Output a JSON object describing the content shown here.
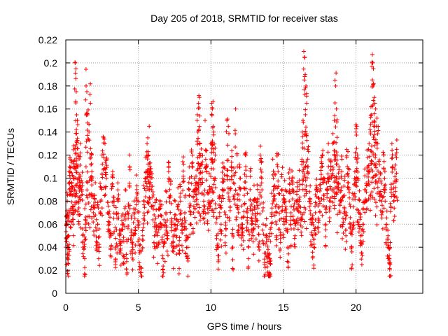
{
  "chart_data": {
    "type": "scatter",
    "title": "Day 205 of 2018, SRMTID for receiver stas",
    "xlabel": "GPS time / hours",
    "ylabel": "SRMTID / TECUs",
    "xlim": [
      0,
      24.6
    ],
    "ylim": [
      0,
      0.22
    ],
    "x_ticks": [
      0,
      5,
      10,
      15,
      20
    ],
    "x_tick_labels": [
      "0",
      "5",
      "10",
      "15",
      "20"
    ],
    "y_ticks": [
      0,
      0.02,
      0.04,
      0.06,
      0.08,
      0.1,
      0.12,
      0.14,
      0.16,
      0.18,
      0.2,
      0.22
    ],
    "y_tick_labels": [
      "0",
      "0.02",
      "0.04",
      "0.06",
      "0.08",
      "0.1",
      "0.12",
      "0.14",
      "0.16",
      "0.18",
      "0.2",
      "0.22"
    ],
    "grid": true,
    "legend": "none",
    "marker": "plus",
    "series_color": "#ff0000",
    "data_extent_hours": [
      0,
      22.8
    ],
    "series": [
      {
        "name": "SRMTID",
        "points": [
          [
            0.0,
            0.04
          ],
          [
            0.05,
            0.06
          ],
          [
            0.1,
            0.08
          ],
          [
            0.12,
            0.03
          ],
          [
            0.15,
            0.026
          ],
          [
            0.2,
            0.05
          ],
          [
            0.25,
            0.09
          ],
          [
            0.3,
            0.1
          ],
          [
            0.35,
            0.07
          ],
          [
            0.4,
            0.115
          ],
          [
            0.45,
            0.085
          ],
          [
            0.5,
            0.06
          ],
          [
            0.55,
            0.11
          ],
          [
            0.6,
            0.09
          ],
          [
            0.65,
            0.2
          ],
          [
            0.7,
            0.195
          ],
          [
            0.72,
            0.175
          ],
          [
            0.75,
            0.155
          ],
          [
            0.8,
            0.15
          ],
          [
            0.85,
            0.12
          ],
          [
            0.9,
            0.08
          ],
          [
            0.95,
            0.1
          ],
          [
            1.0,
            0.13
          ],
          [
            1.1,
            0.09
          ],
          [
            1.2,
            0.04
          ],
          [
            1.3,
            0.03
          ],
          [
            1.35,
            0.06
          ],
          [
            1.4,
            0.18
          ],
          [
            1.45,
            0.175
          ],
          [
            1.5,
            0.155
          ],
          [
            1.6,
            0.14
          ],
          [
            1.7,
            0.165
          ],
          [
            1.75,
            0.12
          ],
          [
            1.8,
            0.1
          ],
          [
            1.9,
            0.07
          ],
          [
            2.0,
            0.085
          ],
          [
            2.1,
            0.045
          ],
          [
            2.2,
            0.06
          ],
          [
            2.3,
            0.04
          ],
          [
            2.4,
            0.08
          ],
          [
            2.5,
            0.12
          ],
          [
            2.6,
            0.135
          ],
          [
            2.7,
            0.13
          ],
          [
            2.8,
            0.1
          ],
          [
            2.9,
            0.07
          ],
          [
            3.0,
            0.06
          ],
          [
            3.1,
            0.05
          ],
          [
            3.2,
            0.095
          ],
          [
            3.3,
            0.065
          ],
          [
            3.4,
            0.04
          ],
          [
            3.5,
            0.055
          ],
          [
            3.6,
            0.08
          ],
          [
            3.7,
            0.05
          ],
          [
            3.8,
            0.035
          ],
          [
            3.9,
            0.06
          ],
          [
            4.0,
            0.045
          ],
          [
            4.1,
            0.075
          ],
          [
            4.2,
            0.03
          ],
          [
            4.3,
            0.065
          ],
          [
            4.4,
            0.12
          ],
          [
            4.5,
            0.05
          ],
          [
            4.6,
            0.04
          ],
          [
            4.7,
            0.07
          ],
          [
            4.8,
            0.055
          ],
          [
            4.9,
            0.09
          ],
          [
            5.0,
            0.06
          ],
          [
            5.1,
            0.035
          ],
          [
            5.2,
            0.018
          ],
          [
            5.3,
            0.05
          ],
          [
            5.4,
            0.08
          ],
          [
            5.5,
            0.1
          ],
          [
            5.6,
            0.13
          ],
          [
            5.65,
            0.135
          ],
          [
            5.7,
            0.12
          ],
          [
            5.75,
            0.145
          ],
          [
            5.8,
            0.11
          ],
          [
            5.9,
            0.09
          ],
          [
            6.0,
            0.075
          ],
          [
            6.1,
            0.05
          ],
          [
            6.2,
            0.065
          ],
          [
            6.3,
            0.04
          ],
          [
            6.4,
            0.055
          ],
          [
            6.5,
            0.08
          ],
          [
            6.6,
            0.06
          ],
          [
            6.7,
            0.03
          ],
          [
            6.8,
            0.045
          ],
          [
            6.9,
            0.07
          ],
          [
            7.0,
            0.05
          ],
          [
            7.1,
            0.1
          ],
          [
            7.2,
            0.085
          ],
          [
            7.3,
            0.06
          ],
          [
            7.4,
            0.04
          ],
          [
            7.5,
            0.065
          ],
          [
            7.6,
            0.05
          ],
          [
            7.7,
            0.075
          ],
          [
            7.8,
            0.035
          ],
          [
            7.9,
            0.08
          ],
          [
            8.0,
            0.055
          ],
          [
            8.1,
            0.1
          ],
          [
            8.2,
            0.07
          ],
          [
            8.3,
            0.05
          ],
          [
            8.4,
            0.03
          ],
          [
            8.5,
            0.09
          ],
          [
            8.6,
            0.06
          ],
          [
            8.7,
            0.11
          ],
          [
            8.8,
            0.07
          ],
          [
            8.9,
            0.08
          ],
          [
            9.0,
            0.09
          ],
          [
            9.05,
            0.15
          ],
          [
            9.1,
            0.14
          ],
          [
            9.15,
            0.165
          ],
          [
            9.2,
            0.17
          ],
          [
            9.25,
            0.13
          ],
          [
            9.3,
            0.12
          ],
          [
            9.4,
            0.1
          ],
          [
            9.5,
            0.08
          ],
          [
            9.6,
            0.15
          ],
          [
            9.7,
            0.11
          ],
          [
            9.8,
            0.07
          ],
          [
            9.9,
            0.09
          ],
          [
            10.0,
            0.13
          ],
          [
            10.05,
            0.165
          ],
          [
            10.1,
            0.16
          ],
          [
            10.15,
            0.145
          ],
          [
            10.2,
            0.14
          ],
          [
            10.3,
            0.12
          ],
          [
            10.4,
            0.05
          ],
          [
            10.5,
            0.04
          ],
          [
            10.6,
            0.07
          ],
          [
            10.7,
            0.06
          ],
          [
            10.8,
            0.1
          ],
          [
            10.9,
            0.09
          ],
          [
            11.0,
            0.05
          ],
          [
            11.1,
            0.15
          ],
          [
            11.2,
            0.145
          ],
          [
            11.3,
            0.08
          ],
          [
            11.4,
            0.11
          ],
          [
            11.5,
            0.04
          ],
          [
            11.6,
            0.095
          ],
          [
            11.7,
            0.16
          ],
          [
            11.8,
            0.12
          ],
          [
            11.9,
            0.07
          ],
          [
            12.0,
            0.1
          ],
          [
            12.1,
            0.06
          ],
          [
            12.2,
            0.05
          ],
          [
            12.3,
            0.085
          ],
          [
            12.4,
            0.11
          ],
          [
            12.5,
            0.07
          ],
          [
            12.6,
            0.04
          ],
          [
            12.7,
            0.09
          ],
          [
            12.8,
            0.06
          ],
          [
            12.9,
            0.05
          ],
          [
            13.0,
            0.075
          ],
          [
            13.1,
            0.065
          ],
          [
            13.2,
            0.08
          ],
          [
            13.3,
            0.04
          ],
          [
            13.4,
            0.12
          ],
          [
            13.5,
            0.1
          ],
          [
            13.6,
            0.06
          ],
          [
            13.7,
            0.025
          ],
          [
            13.8,
            0.05
          ],
          [
            13.9,
            0.035
          ],
          [
            14.0,
            0.018
          ],
          [
            14.05,
            0.016
          ],
          [
            14.1,
            0.045
          ],
          [
            14.2,
            0.07
          ],
          [
            14.3,
            0.1
          ],
          [
            14.4,
            0.085
          ],
          [
            14.5,
            0.06
          ],
          [
            14.6,
            0.11
          ],
          [
            14.7,
            0.075
          ],
          [
            14.8,
            0.05
          ],
          [
            14.9,
            0.09
          ],
          [
            15.0,
            0.065
          ],
          [
            15.1,
            0.08
          ],
          [
            15.2,
            0.07
          ],
          [
            15.3,
            0.04
          ],
          [
            15.4,
            0.1
          ],
          [
            15.5,
            0.06
          ],
          [
            15.6,
            0.09
          ],
          [
            15.7,
            0.075
          ],
          [
            15.8,
            0.05
          ],
          [
            15.9,
            0.08
          ],
          [
            16.0,
            0.065
          ],
          [
            16.1,
            0.09
          ],
          [
            16.2,
            0.07
          ],
          [
            16.3,
            0.14
          ],
          [
            16.35,
            0.15
          ],
          [
            16.4,
            0.21
          ],
          [
            16.45,
            0.205
          ],
          [
            16.5,
            0.19
          ],
          [
            16.55,
            0.18
          ],
          [
            16.6,
            0.165
          ],
          [
            16.7,
            0.11
          ],
          [
            16.8,
            0.08
          ],
          [
            16.9,
            0.06
          ],
          [
            17.0,
            0.05
          ],
          [
            17.1,
            0.04
          ],
          [
            17.2,
            0.07
          ],
          [
            17.3,
            0.09
          ],
          [
            17.4,
            0.065
          ],
          [
            17.5,
            0.08
          ],
          [
            17.6,
            0.1
          ],
          [
            17.7,
            0.12
          ],
          [
            17.8,
            0.085
          ],
          [
            17.9,
            0.06
          ],
          [
            18.0,
            0.09
          ],
          [
            18.1,
            0.11
          ],
          [
            18.2,
            0.075
          ],
          [
            18.3,
            0.1
          ],
          [
            18.4,
            0.13
          ],
          [
            18.5,
            0.15
          ],
          [
            18.55,
            0.185
          ],
          [
            18.6,
            0.18
          ],
          [
            18.65,
            0.16
          ],
          [
            18.7,
            0.12
          ],
          [
            18.8,
            0.09
          ],
          [
            18.9,
            0.07
          ],
          [
            19.0,
            0.1
          ],
          [
            19.1,
            0.065
          ],
          [
            19.2,
            0.085
          ],
          [
            19.3,
            0.05
          ],
          [
            19.4,
            0.11
          ],
          [
            19.5,
            0.09
          ],
          [
            19.6,
            0.06
          ],
          [
            19.7,
            0.04
          ],
          [
            19.8,
            0.075
          ],
          [
            19.9,
            0.1
          ],
          [
            20.0,
            0.14
          ],
          [
            20.05,
            0.145
          ],
          [
            20.1,
            0.12
          ],
          [
            20.2,
            0.07
          ],
          [
            20.3,
            0.05
          ],
          [
            20.4,
            0.035
          ],
          [
            20.5,
            0.06
          ],
          [
            20.6,
            0.09
          ],
          [
            20.7,
            0.08
          ],
          [
            20.8,
            0.11
          ],
          [
            20.9,
            0.13
          ],
          [
            21.0,
            0.14
          ],
          [
            21.05,
            0.155
          ],
          [
            21.1,
            0.2
          ],
          [
            21.15,
            0.2
          ],
          [
            21.2,
            0.195
          ],
          [
            21.25,
            0.17
          ],
          [
            21.3,
            0.165
          ],
          [
            21.35,
            0.16
          ],
          [
            21.4,
            0.145
          ],
          [
            21.5,
            0.13
          ],
          [
            21.6,
            0.1
          ],
          [
            21.7,
            0.085
          ],
          [
            21.8,
            0.07
          ],
          [
            21.9,
            0.12
          ],
          [
            22.0,
            0.09
          ],
          [
            22.1,
            0.06
          ],
          [
            22.2,
            0.05
          ],
          [
            22.3,
            0.03
          ],
          [
            22.35,
            0.025
          ],
          [
            22.4,
            0.075
          ],
          [
            22.5,
            0.11
          ],
          [
            22.6,
            0.08
          ],
          [
            22.7,
            0.12
          ],
          [
            22.8,
            0.125
          ]
        ]
      }
    ]
  }
}
